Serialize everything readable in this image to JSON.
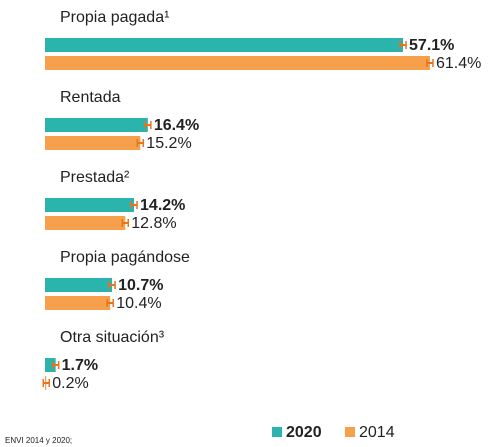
{
  "chart_data": {
    "type": "bar",
    "orientation": "horizontal",
    "categories": [
      "Propia pagada¹",
      "Rentada",
      "Prestada²",
      "Propia pagándose",
      "Otra situación³"
    ],
    "series": [
      {
        "name": "2020",
        "color": "#2bb3ae",
        "values": [
          57.1,
          16.4,
          14.2,
          10.7,
          1.7
        ],
        "value_labels": [
          "57.1%",
          "16.4%",
          "14.2%",
          "10.7%",
          "1.7%"
        ]
      },
      {
        "name": "2014",
        "color": "#f7a04b",
        "values": [
          61.4,
          15.2,
          12.8,
          10.4,
          0.2
        ],
        "value_labels": [
          "61.4%",
          "15.2%",
          "12.8%",
          "10.4%",
          "0.2%"
        ]
      }
    ],
    "source": "ENVI 2014 y 2020;",
    "legend": "bottom-right"
  }
}
